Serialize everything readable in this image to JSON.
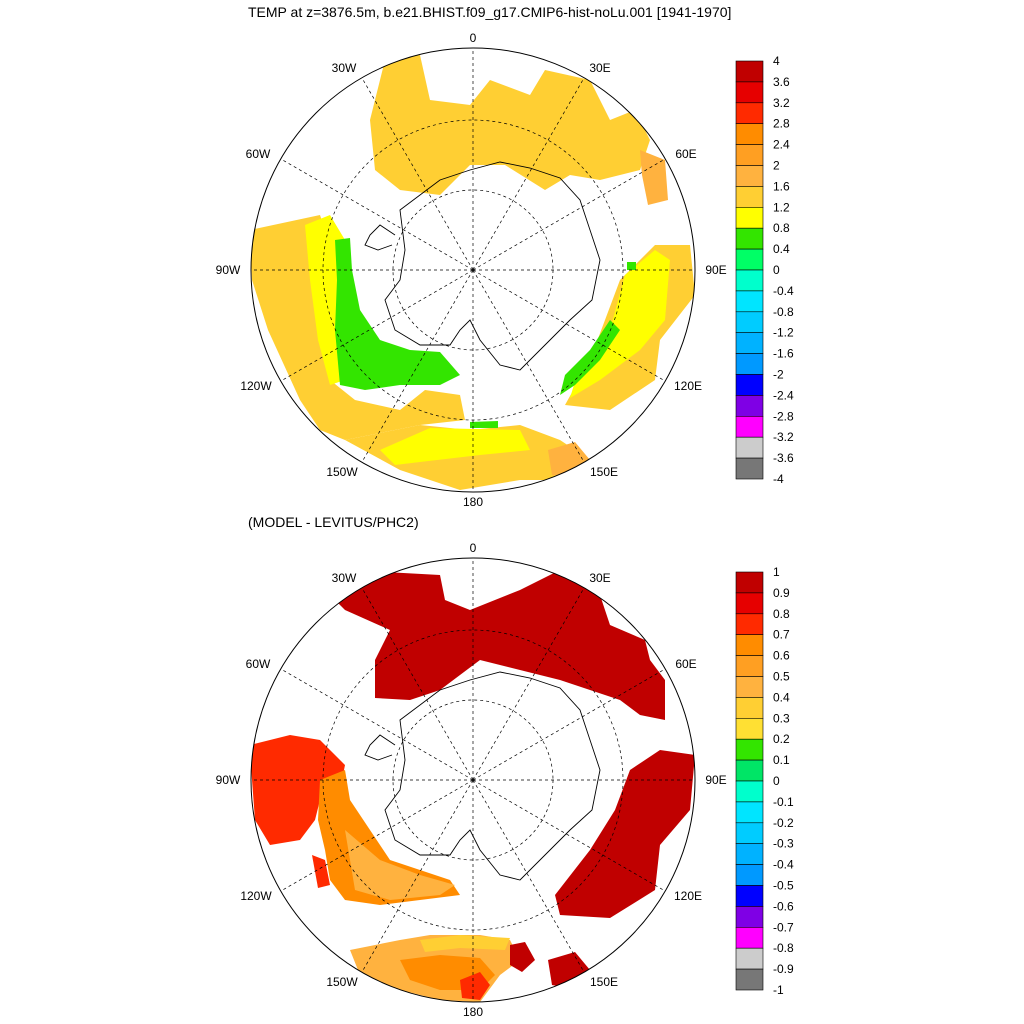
{
  "panel_top": {
    "title": "TEMP at z=3876.5m, b.e21.BHIST.f09_g17.CMIP6-hist-noLu.001 [1941-1970]",
    "lon_labels": [
      "0",
      "30E",
      "60E",
      "90E",
      "120E",
      "150E",
      "180",
      "150W",
      "120W",
      "90W",
      "60W",
      "30W"
    ],
    "colorbar": {
      "labels": [
        "4",
        "3.6",
        "3.2",
        "2.8",
        "2.4",
        "2",
        "1.6",
        "1.2",
        "0.8",
        "0.4",
        "0",
        "-0.4",
        "-0.8",
        "-1.2",
        "-1.6",
        "-2",
        "-2.4",
        "-2.8",
        "-3.2",
        "-3.6",
        "-4"
      ],
      "colors": [
        "#c00000",
        "#e60000",
        "#ff2a00",
        "#ff8c00",
        "#ff9f22",
        "#ffb23f",
        "#ffcf33",
        "#ffff00",
        "#33e500",
        "#00ff66",
        "#00ffcc",
        "#00e5ff",
        "#00ccff",
        "#00b2ff",
        "#0099ff",
        "#0000ff",
        "#7f00e5",
        "#ff00ff",
        "#cccccc",
        "#777777"
      ]
    }
  },
  "panel_bottom": {
    "title": "(MODEL - LEVITUS/PHC2)",
    "lon_labels": [
      "0",
      "30E",
      "60E",
      "90E",
      "120E",
      "150E",
      "180",
      "150W",
      "120W",
      "90W",
      "60W",
      "30W"
    ],
    "colorbar": {
      "labels": [
        "1",
        "0.9",
        "0.8",
        "0.7",
        "0.6",
        "0.5",
        "0.4",
        "0.3",
        "0.2",
        "0.1",
        "0",
        "-0.1",
        "-0.2",
        "-0.3",
        "-0.4",
        "-0.5",
        "-0.6",
        "-0.7",
        "-0.8",
        "-0.9",
        "-1"
      ],
      "colors": [
        "#c00000",
        "#e60000",
        "#ff2a00",
        "#ff8c00",
        "#ff9f22",
        "#ffb23f",
        "#ffcf33",
        "#ffe033",
        "#33e500",
        "#00e566",
        "#00ffcc",
        "#00e5ff",
        "#00ccff",
        "#00b2ff",
        "#0099ff",
        "#0000ff",
        "#7f00e5",
        "#ff00ff",
        "#cccccc",
        "#777777"
      ]
    }
  }
}
